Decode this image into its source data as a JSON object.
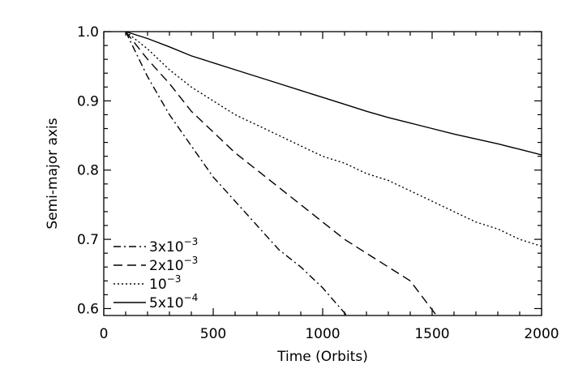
{
  "chart_data": {
    "type": "line",
    "title": "",
    "xlabel": "Time (Orbits)",
    "ylabel": "Semi-major axis",
    "xlim": [
      0,
      2000
    ],
    "ylim": [
      0.59,
      1.0
    ],
    "xticks": [
      0,
      500,
      1000,
      1500,
      2000
    ],
    "xtick_labels": [
      "0",
      "500",
      "1000",
      "1500",
      "2000"
    ],
    "yticks": [
      0.6,
      0.7,
      0.8,
      0.9,
      1.0
    ],
    "ytick_labels": [
      "0.6",
      "0.7",
      "0.8",
      "0.9",
      "1.0"
    ],
    "grid": false,
    "legend_position": "bottom-left",
    "series": [
      {
        "name_base": "3x10",
        "name_exp": "−3",
        "line_style": "dash-dot",
        "color": "#000000",
        "x": [
          100,
          200,
          300,
          400,
          500,
          600,
          700,
          800,
          900,
          1000,
          1110
        ],
        "y": [
          1.0,
          0.935,
          0.88,
          0.835,
          0.79,
          0.755,
          0.72,
          0.685,
          0.66,
          0.63,
          0.59
        ]
      },
      {
        "name_base": "2x10",
        "name_exp": "−3",
        "line_style": "dashed",
        "color": "#000000",
        "x": [
          100,
          200,
          300,
          400,
          500,
          600,
          700,
          800,
          900,
          1000,
          1100,
          1200,
          1300,
          1400,
          1520
        ],
        "y": [
          1.0,
          0.96,
          0.925,
          0.885,
          0.855,
          0.825,
          0.8,
          0.775,
          0.75,
          0.725,
          0.7,
          0.68,
          0.66,
          0.64,
          0.59
        ]
      },
      {
        "name_base": "10",
        "name_exp": "−3",
        "line_style": "dotted",
        "color": "#000000",
        "x": [
          100,
          200,
          300,
          400,
          500,
          600,
          700,
          800,
          900,
          1000,
          1100,
          1200,
          1300,
          1400,
          1500,
          1600,
          1700,
          1800,
          1900,
          2000
        ],
        "y": [
          1.0,
          0.975,
          0.945,
          0.92,
          0.9,
          0.88,
          0.865,
          0.85,
          0.835,
          0.82,
          0.81,
          0.795,
          0.785,
          0.77,
          0.755,
          0.74,
          0.725,
          0.715,
          0.7,
          0.69
        ]
      },
      {
        "name_base": "5x10",
        "name_exp": "−4",
        "line_style": "solid",
        "color": "#000000",
        "x": [
          100,
          200,
          300,
          400,
          500,
          600,
          700,
          800,
          900,
          1000,
          1100,
          1200,
          1300,
          1400,
          1500,
          1600,
          1700,
          1800,
          1900,
          2000
        ],
        "y": [
          1.0,
          0.99,
          0.978,
          0.965,
          0.955,
          0.945,
          0.935,
          0.925,
          0.915,
          0.905,
          0.895,
          0.885,
          0.876,
          0.868,
          0.86,
          0.852,
          0.845,
          0.838,
          0.83,
          0.822
        ]
      }
    ]
  }
}
